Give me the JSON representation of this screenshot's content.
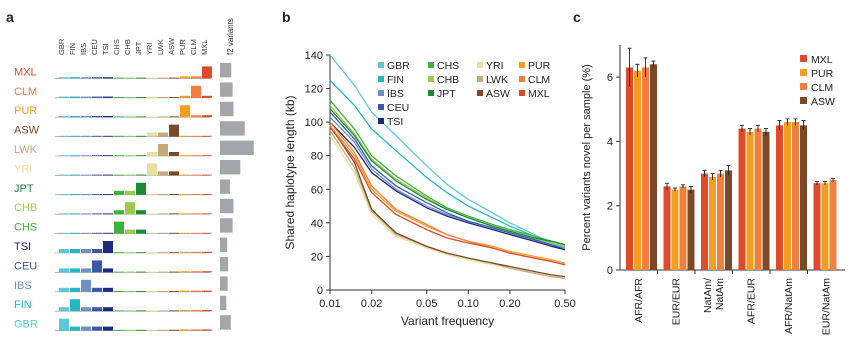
{
  "figure": {
    "panel_labels": [
      "a",
      "b",
      "c"
    ]
  },
  "colors": {
    "GBR": "#5bc8d8",
    "FIN": "#22b8c8",
    "IBS": "#6f8fc8",
    "CEU": "#3a5aa8",
    "TSI": "#1c2a80",
    "CHS": "#3db33d",
    "CHB": "#9ccc4a",
    "JPT": "#1a8a3a",
    "YRI": "#e8e0a0",
    "LWK": "#c8a878",
    "ASW": "#7a4a28",
    "PUR": "#f0a020",
    "CLM": "#f08040",
    "MXL": "#e04a2a",
    "bar_gray": "#a3a6ab",
    "axis": "#333333"
  },
  "chart_data": [
    {
      "panel": "a",
      "type": "heatmap",
      "column_labels": [
        "GBR",
        "FIN",
        "IBS",
        "CEU",
        "TSI",
        "CHS",
        "CHB",
        "JPT",
        "YRI",
        "LWK",
        "ASW",
        "PUR",
        "CLM",
        "MXL"
      ],
      "row_labels": [
        "MXL",
        "CLM",
        "PUR",
        "ASW",
        "LWK",
        "YRI",
        "JPT",
        "CHB",
        "CHS",
        "TSI",
        "CEU",
        "IBS",
        "FIN",
        "GBR"
      ],
      "side_bar_label": "f2 variants",
      "side_bar_values": [
        0.25,
        0.28,
        0.3,
        0.55,
        0.75,
        0.45,
        0.22,
        0.3,
        0.28,
        0.16,
        0.18,
        0.17,
        0.14,
        0.24
      ]
    },
    {
      "panel": "b",
      "type": "line",
      "xscale": "log",
      "xlabel": "Variant frequency",
      "ylabel": "Shared haplotype length (kb)",
      "xlim": [
        0.01,
        0.5
      ],
      "ylim": [
        0,
        140
      ],
      "xticks": [
        "0.01",
        "0.02",
        "0.05",
        "0.10",
        "0.20",
        "0.50"
      ],
      "yticks": [
        "0",
        "20",
        "40",
        "60",
        "80",
        "100",
        "120",
        "140"
      ],
      "x": [
        0.01,
        0.015,
        0.02,
        0.03,
        0.05,
        0.07,
        0.1,
        0.15,
        0.2,
        0.3,
        0.4,
        0.5
      ],
      "series": [
        {
          "name": "GBR",
          "values": [
            140,
            122,
            106,
            92,
            74,
            63,
            54,
            46,
            40,
            33,
            28,
            25
          ]
        },
        {
          "name": "FIN",
          "values": [
            125,
            110,
            96,
            83,
            67,
            58,
            50,
            43,
            38,
            32,
            28,
            26
          ]
        },
        {
          "name": "IBS",
          "values": [
            103,
            88,
            72,
            60,
            50,
            45,
            41,
            37,
            34,
            30,
            27,
            25
          ]
        },
        {
          "name": "CEU",
          "values": [
            106,
            90,
            74,
            62,
            52,
            46,
            41,
            37,
            34,
            30,
            27,
            24
          ]
        },
        {
          "name": "TSI",
          "values": [
            100,
            85,
            70,
            59,
            49,
            44,
            40,
            36,
            33,
            29,
            26,
            24
          ]
        },
        {
          "name": "CHS",
          "values": [
            113,
            96,
            80,
            68,
            56,
            49,
            44,
            39,
            36,
            32,
            29,
            27
          ]
        },
        {
          "name": "CHB",
          "values": [
            110,
            93,
            78,
            66,
            55,
            48,
            43,
            38,
            35,
            31,
            28,
            26
          ]
        },
        {
          "name": "JPT",
          "values": [
            108,
            92,
            77,
            65,
            54,
            48,
            43,
            38,
            35,
            31,
            29,
            27
          ]
        },
        {
          "name": "YRI",
          "values": [
            92,
            70,
            45,
            32,
            25,
            21,
            18,
            15,
            13,
            10,
            8,
            7
          ]
        },
        {
          "name": "LWK",
          "values": [
            95,
            73,
            47,
            33,
            26,
            22,
            19,
            16,
            13,
            10,
            8,
            7
          ]
        },
        {
          "name": "ASW",
          "values": [
            98,
            76,
            48,
            34,
            26,
            22,
            19,
            16,
            14,
            11,
            9,
            8
          ]
        },
        {
          "name": "PUR",
          "values": [
            98,
            80,
            60,
            47,
            38,
            33,
            29,
            26,
            23,
            20,
            18,
            16
          ]
        },
        {
          "name": "CLM",
          "values": [
            100,
            82,
            62,
            48,
            39,
            33,
            29,
            25,
            22,
            19,
            17,
            15
          ]
        },
        {
          "name": "MXL",
          "values": [
            97,
            78,
            58,
            45,
            36,
            31,
            28,
            25,
            22,
            19,
            17,
            15
          ]
        }
      ],
      "legend_columns": [
        [
          "GBR",
          "FIN",
          "IBS",
          "CEU",
          "TSI"
        ],
        [
          "CHS",
          "CHB",
          "JPT"
        ],
        [
          "YRI",
          "LWK",
          "ASW"
        ],
        [
          "PUR",
          "CLM",
          "MXL"
        ]
      ]
    },
    {
      "panel": "c",
      "type": "bar",
      "ylabel": "Percent variants novel per sample (%)",
      "ylim": [
        0,
        7
      ],
      "yticks": [
        "0",
        "2",
        "4",
        "6"
      ],
      "categories": [
        "AFR/AFR",
        "EUR/EUR",
        "NatAm/\nNatAm",
        "AFR/EUR",
        "AFR/NatAm",
        "EUR/NatAm"
      ],
      "series": [
        {
          "name": "MXL",
          "values": [
            6.3,
            2.6,
            3.0,
            4.4,
            4.5,
            2.7
          ],
          "errors": [
            0.6,
            0.1,
            0.1,
            0.1,
            0.15,
            0.05
          ]
        },
        {
          "name": "PUR",
          "values": [
            6.2,
            2.5,
            2.9,
            4.3,
            4.6,
            2.7
          ],
          "errors": [
            0.2,
            0.05,
            0.1,
            0.1,
            0.1,
            0.05
          ]
        },
        {
          "name": "CLM",
          "values": [
            6.3,
            2.6,
            3.0,
            4.4,
            4.6,
            2.8
          ],
          "errors": [
            0.3,
            0.05,
            0.1,
            0.1,
            0.1,
            0.05
          ]
        },
        {
          "name": "ASW",
          "values": [
            6.4,
            2.5,
            3.1,
            4.3,
            4.5,
            null
          ],
          "errors": [
            0.1,
            0.1,
            0.15,
            0.1,
            0.15,
            null
          ]
        }
      ]
    }
  ]
}
